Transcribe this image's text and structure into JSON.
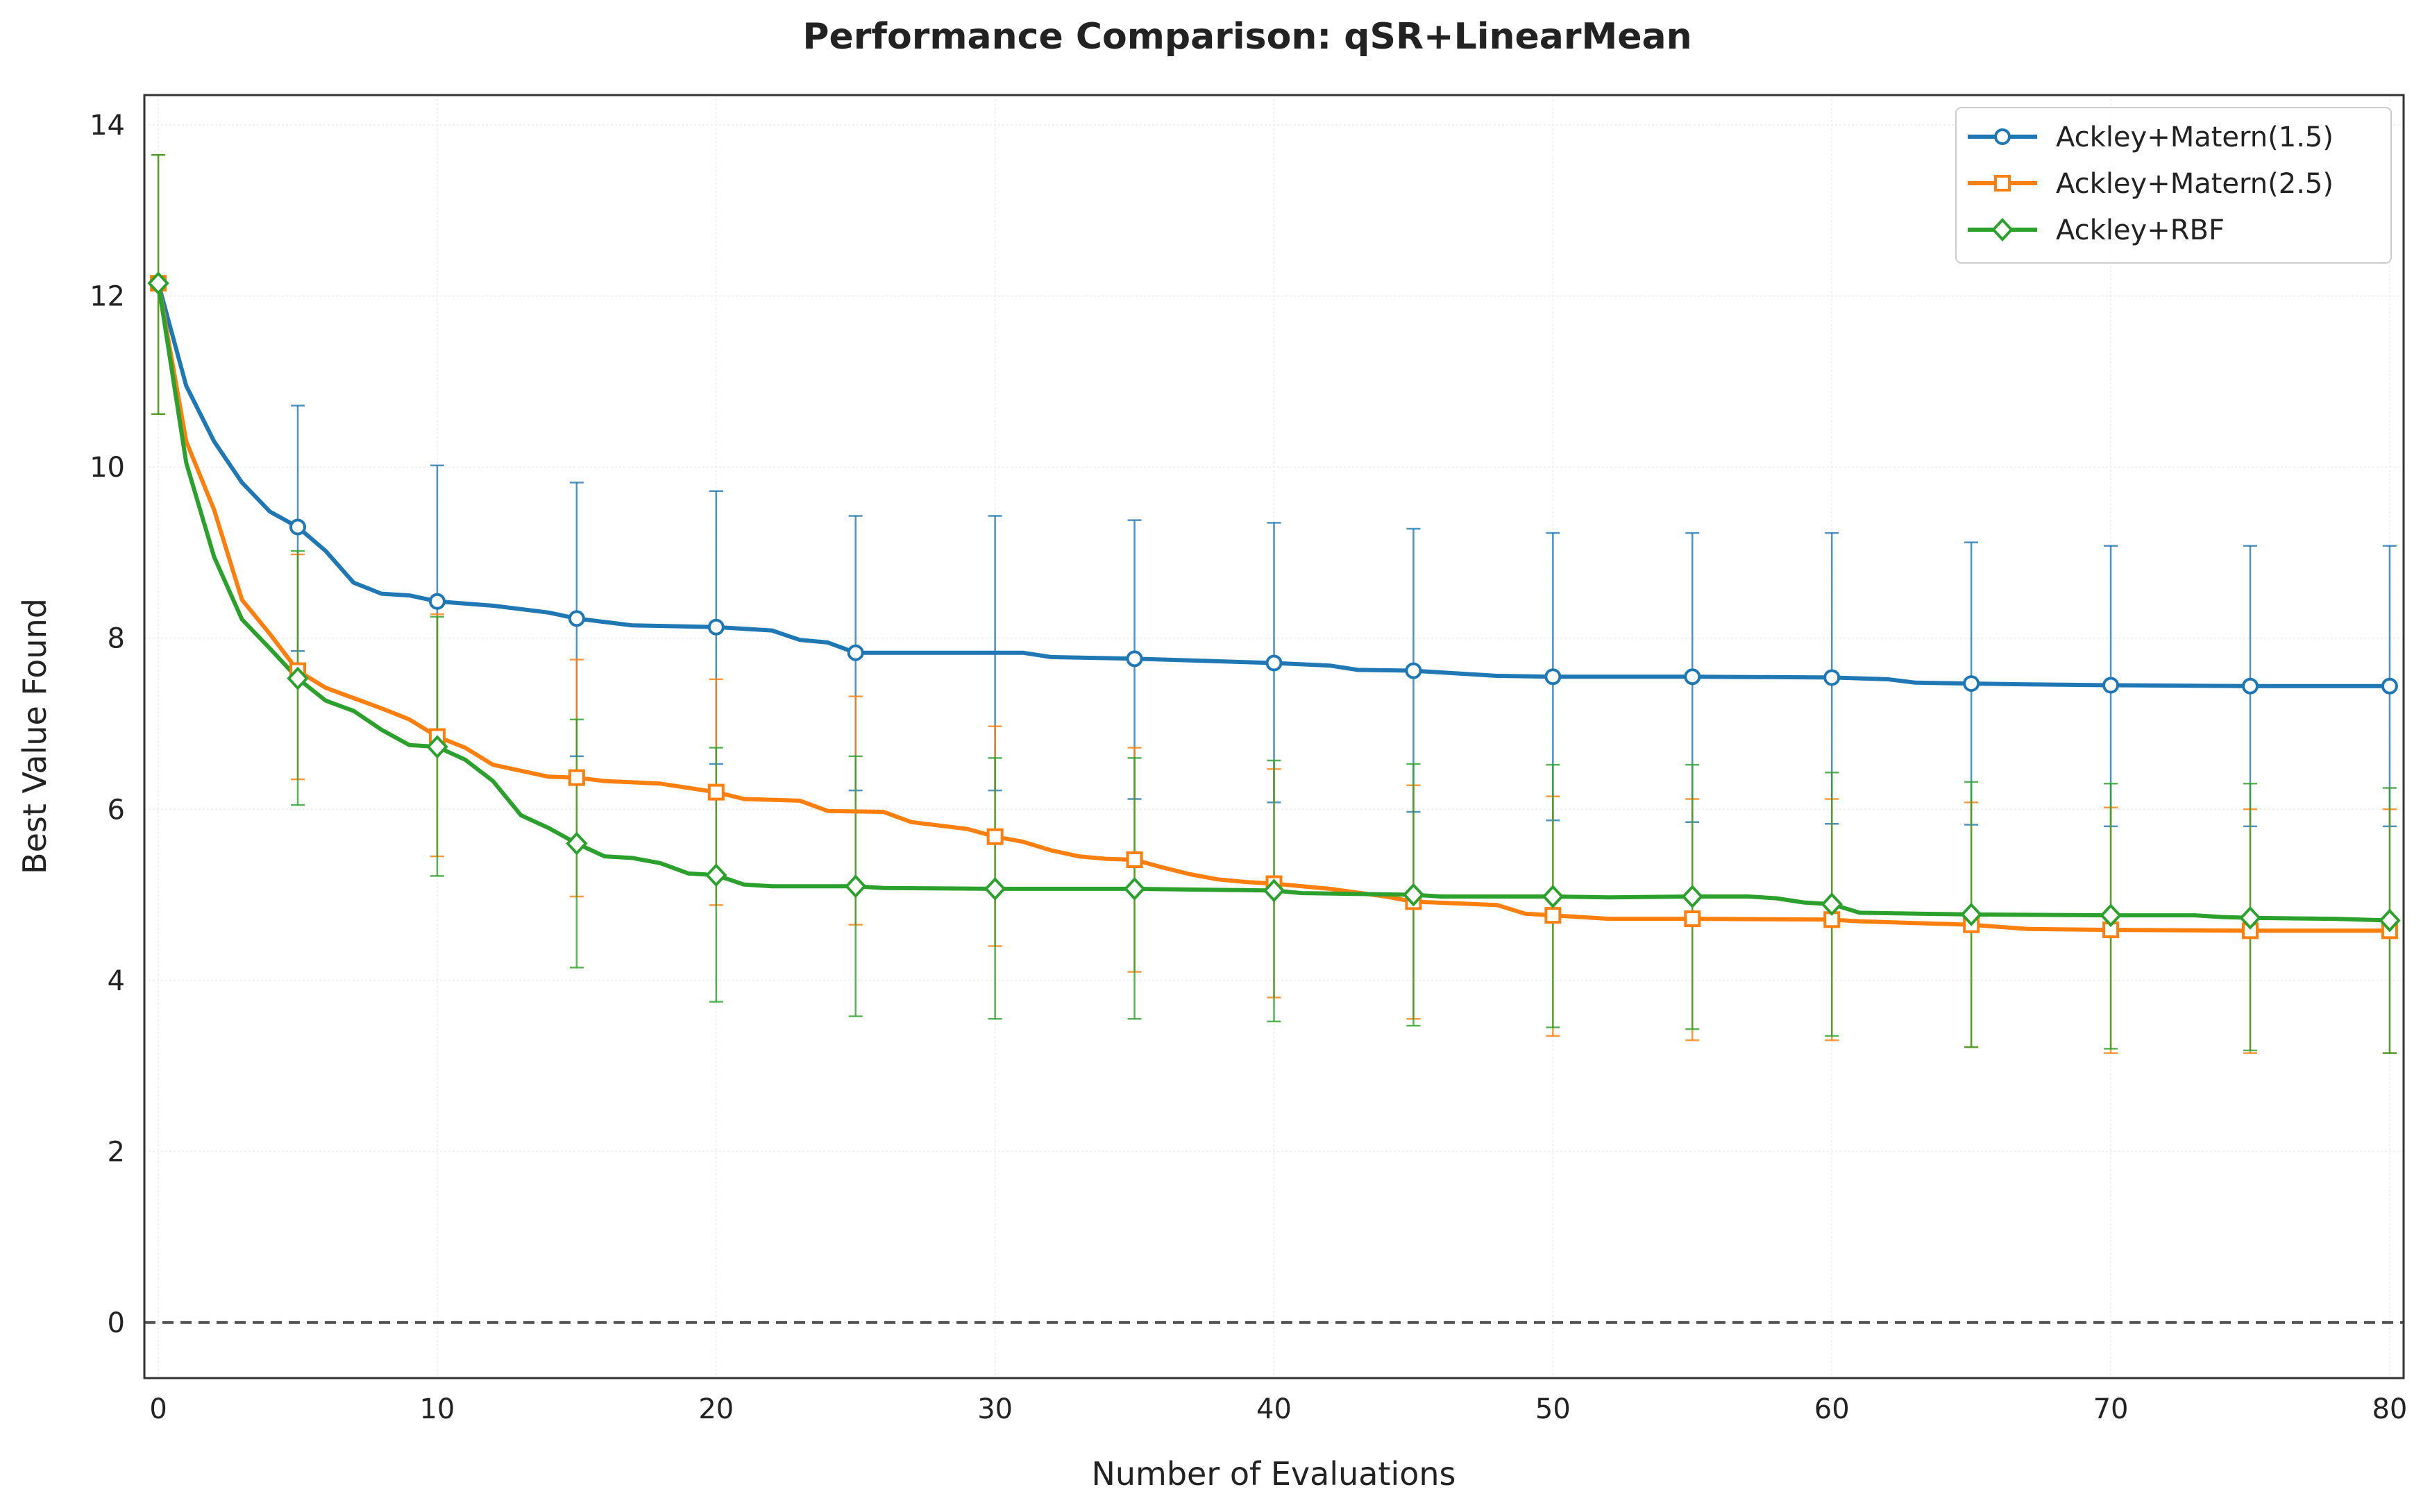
{
  "chart_data": {
    "type": "line",
    "title": "Performance Comparison: qSR+LinearMean",
    "xlabel": "Number of Evaluations",
    "ylabel": "Best Value Found",
    "xlim": [
      -0.5,
      80.5
    ],
    "ylim": [
      -0.65,
      14.35
    ],
    "xticks": [
      0,
      10,
      20,
      30,
      40,
      50,
      60,
      70,
      80
    ],
    "yticks": [
      0,
      2,
      4,
      6,
      8,
      10,
      12,
      14
    ],
    "grid": true,
    "legend_position": "top-right",
    "reference_line": {
      "y": 0,
      "style": "dashed",
      "color": "#555555"
    },
    "errorbar_interval": 5,
    "series": [
      {
        "name": "Ackley+Matern(1.5)",
        "color": "#1f77b4",
        "marker": "circle",
        "x": [
          0,
          1,
          2,
          3,
          4,
          5,
          6,
          7,
          8,
          9,
          10,
          12,
          14,
          15,
          17,
          20,
          22,
          23,
          24,
          25,
          28,
          31,
          32,
          35,
          40,
          42,
          43,
          45,
          48,
          50,
          55,
          60,
          62,
          63,
          65,
          67,
          70,
          75,
          80
        ],
        "y": [
          12.15,
          10.95,
          10.3,
          9.82,
          9.48,
          9.3,
          9.02,
          8.65,
          8.52,
          8.5,
          8.43,
          8.38,
          8.3,
          8.23,
          8.15,
          8.13,
          8.09,
          7.98,
          7.95,
          7.83,
          7.83,
          7.83,
          7.78,
          7.76,
          7.71,
          7.68,
          7.63,
          7.62,
          7.56,
          7.55,
          7.55,
          7.54,
          7.52,
          7.48,
          7.47,
          7.46,
          7.45,
          7.44,
          7.44
        ],
        "errorbars": [
          {
            "x": 5,
            "low": 7.85,
            "high": 10.72
          },
          {
            "x": 10,
            "low": 6.85,
            "high": 10.02
          },
          {
            "x": 15,
            "low": 6.62,
            "high": 9.82
          },
          {
            "x": 20,
            "low": 6.53,
            "high": 9.72
          },
          {
            "x": 25,
            "low": 6.22,
            "high": 9.43
          },
          {
            "x": 30,
            "low": 6.22,
            "high": 9.43
          },
          {
            "x": 35,
            "low": 6.12,
            "high": 9.38
          },
          {
            "x": 40,
            "low": 6.08,
            "high": 9.35
          },
          {
            "x": 45,
            "low": 5.97,
            "high": 9.28
          },
          {
            "x": 50,
            "low": 5.87,
            "high": 9.23
          },
          {
            "x": 55,
            "low": 5.85,
            "high": 9.23
          },
          {
            "x": 60,
            "low": 5.83,
            "high": 9.23
          },
          {
            "x": 65,
            "low": 5.82,
            "high": 9.12
          },
          {
            "x": 70,
            "low": 5.8,
            "high": 9.08
          },
          {
            "x": 75,
            "low": 5.8,
            "high": 9.08
          },
          {
            "x": 80,
            "low": 5.8,
            "high": 9.08
          }
        ]
      },
      {
        "name": "Ackley+Matern(2.5)",
        "color": "#ff7f0e",
        "marker": "square",
        "x": [
          0,
          1,
          2,
          3,
          4,
          5,
          6,
          7,
          8,
          9,
          10,
          11,
          12,
          13,
          14,
          15,
          16,
          18,
          20,
          21,
          23,
          24,
          26,
          27,
          29,
          30,
          31,
          32,
          33,
          34,
          35,
          36,
          37,
          38,
          39,
          40,
          42,
          44,
          45,
          48,
          49,
          50,
          51,
          52,
          55,
          60,
          61,
          65,
          67,
          70,
          75,
          80
        ],
        "y": [
          12.15,
          10.3,
          9.5,
          8.45,
          8.05,
          7.62,
          7.42,
          7.3,
          7.18,
          7.05,
          6.85,
          6.72,
          6.52,
          6.45,
          6.38,
          6.37,
          6.33,
          6.3,
          6.2,
          6.12,
          6.1,
          5.98,
          5.97,
          5.85,
          5.77,
          5.68,
          5.62,
          5.52,
          5.45,
          5.42,
          5.41,
          5.32,
          5.24,
          5.18,
          5.15,
          5.13,
          5.07,
          4.98,
          4.92,
          4.88,
          4.78,
          4.76,
          4.74,
          4.72,
          4.72,
          4.71,
          4.69,
          4.65,
          4.6,
          4.59,
          4.58,
          4.58
        ],
        "errorbars": [
          {
            "x": 0,
            "low": 10.62,
            "high": 13.65
          },
          {
            "x": 5,
            "low": 6.35,
            "high": 8.98
          },
          {
            "x": 10,
            "low": 5.45,
            "high": 8.28
          },
          {
            "x": 15,
            "low": 4.98,
            "high": 7.75
          },
          {
            "x": 20,
            "low": 4.88,
            "high": 7.52
          },
          {
            "x": 25,
            "low": 4.65,
            "high": 7.32
          },
          {
            "x": 30,
            "low": 4.4,
            "high": 6.97
          },
          {
            "x": 35,
            "low": 4.1,
            "high": 6.72
          },
          {
            "x": 40,
            "low": 3.8,
            "high": 6.47
          },
          {
            "x": 45,
            "low": 3.55,
            "high": 6.28
          },
          {
            "x": 50,
            "low": 3.35,
            "high": 6.15
          },
          {
            "x": 55,
            "low": 3.3,
            "high": 6.12
          },
          {
            "x": 60,
            "low": 3.3,
            "high": 6.12
          },
          {
            "x": 65,
            "low": 3.22,
            "high": 6.08
          },
          {
            "x": 70,
            "low": 3.15,
            "high": 6.02
          },
          {
            "x": 75,
            "low": 3.15,
            "high": 6.0
          },
          {
            "x": 80,
            "low": 3.15,
            "high": 6.0
          }
        ]
      },
      {
        "name": "Ackley+RBF",
        "color": "#2ca02c",
        "marker": "diamond",
        "x": [
          0,
          1,
          2,
          3,
          4,
          5,
          6,
          7,
          8,
          9,
          10,
          11,
          12,
          13,
          14,
          15,
          16,
          17,
          18,
          19,
          20,
          21,
          22,
          25,
          26,
          30,
          35,
          40,
          41,
          45,
          46,
          50,
          52,
          55,
          57,
          58,
          59,
          60,
          61,
          65,
          70,
          73,
          74,
          75,
          78,
          80
        ],
        "y": [
          12.15,
          10.05,
          8.95,
          8.22,
          7.88,
          7.53,
          7.27,
          7.15,
          6.93,
          6.75,
          6.73,
          6.58,
          6.33,
          5.93,
          5.78,
          5.6,
          5.45,
          5.43,
          5.37,
          5.25,
          5.23,
          5.12,
          5.1,
          5.1,
          5.08,
          5.07,
          5.07,
          5.05,
          5.02,
          5.0,
          4.98,
          4.98,
          4.97,
          4.98,
          4.98,
          4.96,
          4.91,
          4.89,
          4.79,
          4.77,
          4.76,
          4.76,
          4.74,
          4.73,
          4.72,
          4.7
        ],
        "errorbars": [
          {
            "x": 0,
            "low": 10.62,
            "high": 13.65
          },
          {
            "x": 5,
            "low": 6.05,
            "high": 9.02
          },
          {
            "x": 10,
            "low": 5.22,
            "high": 8.25
          },
          {
            "x": 15,
            "low": 4.15,
            "high": 7.05
          },
          {
            "x": 20,
            "low": 3.75,
            "high": 6.72
          },
          {
            "x": 25,
            "low": 3.58,
            "high": 6.62
          },
          {
            "x": 30,
            "low": 3.55,
            "high": 6.6
          },
          {
            "x": 35,
            "low": 3.55,
            "high": 6.6
          },
          {
            "x": 40,
            "low": 3.52,
            "high": 6.57
          },
          {
            "x": 45,
            "low": 3.47,
            "high": 6.53
          },
          {
            "x": 50,
            "low": 3.45,
            "high": 6.52
          },
          {
            "x": 55,
            "low": 3.43,
            "high": 6.52
          },
          {
            "x": 60,
            "low": 3.35,
            "high": 6.43
          },
          {
            "x": 65,
            "low": 3.22,
            "high": 6.32
          },
          {
            "x": 70,
            "low": 3.2,
            "high": 6.3
          },
          {
            "x": 75,
            "low": 3.18,
            "high": 6.3
          },
          {
            "x": 80,
            "low": 3.15,
            "high": 6.25
          }
        ]
      }
    ]
  }
}
